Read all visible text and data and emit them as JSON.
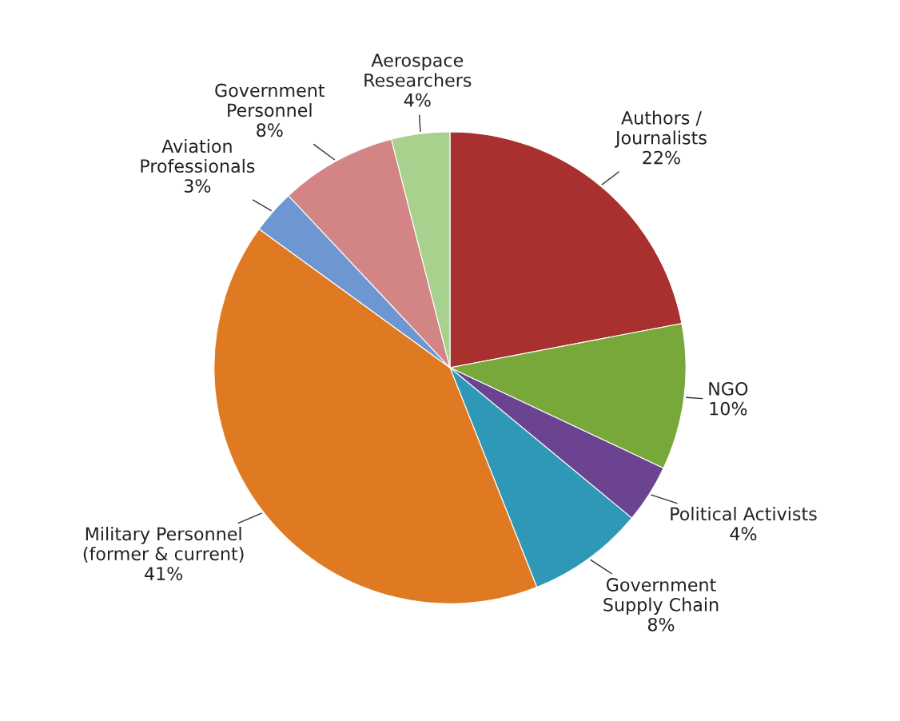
{
  "chart_data": {
    "type": "pie",
    "categories": [
      "Authors /\nJournalists",
      "NGO",
      "Political Activists",
      "Government\nSupply Chain",
      "Military Personnel\n(former & current)",
      "Aviation\nProfessionals",
      "Government\nPersonnel",
      "Aerospace\nResearchers"
    ],
    "values": [
      22,
      10,
      4,
      8,
      41,
      3,
      8,
      4
    ],
    "value_labels": [
      "22%",
      "10%",
      "4%",
      "8%",
      "41%",
      "3%",
      "8%",
      "4%"
    ],
    "colors": [
      "#a8302e",
      "#78a83a",
      "#6b4391",
      "#2e98b6",
      "#e07a22",
      "#6e96d0",
      "#d28584",
      "#a9d18e"
    ]
  }
}
